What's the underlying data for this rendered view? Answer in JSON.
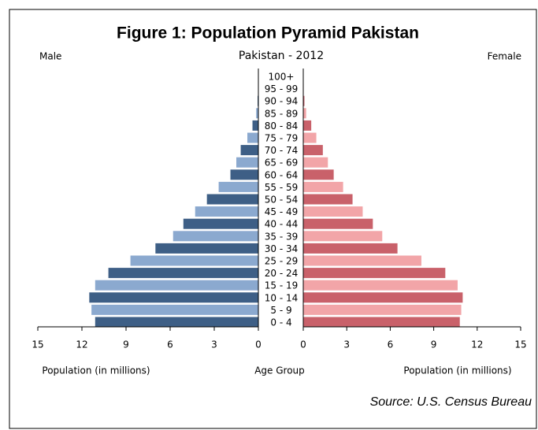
{
  "chart_data": {
    "type": "pyramid",
    "title": "Figure 1: Population Pyramid Pakistan",
    "subtitle": "Pakistan - 2012",
    "source": "Source: U.S. Census Bureau",
    "ylabel": "Age Group",
    "categories": [
      "0 - 4",
      "5 - 9",
      "10 - 14",
      "15 - 19",
      "20 - 24",
      "25 - 29",
      "30 - 34",
      "35 - 39",
      "40 - 44",
      "45 - 49",
      "50 - 54",
      "55 - 59",
      "60 - 64",
      "65 - 69",
      "70 - 74",
      "75 - 79",
      "80 - 84",
      "85 - 89",
      "90 - 94",
      "95 - 99",
      "100+"
    ],
    "xlim": [
      0,
      15
    ],
    "xticks": [
      0,
      3,
      6,
      9,
      12,
      15
    ],
    "series": [
      {
        "name": "Male",
        "side": "left",
        "xlabel": "Population (in millions)",
        "colors": [
          "#3e5f86",
          "#8ba9cf"
        ],
        "values": [
          11.1,
          11.35,
          11.5,
          11.1,
          10.2,
          8.7,
          7.0,
          5.8,
          5.1,
          4.3,
          3.5,
          2.7,
          1.9,
          1.5,
          1.2,
          0.75,
          0.4,
          0.15,
          0.05,
          0.02,
          0.01
        ]
      },
      {
        "name": "Female",
        "side": "right",
        "xlabel": "Population (in millions)",
        "colors": [
          "#c9616a",
          "#f2a5a8"
        ],
        "values": [
          10.8,
          10.9,
          11.0,
          10.65,
          9.8,
          8.15,
          6.5,
          5.45,
          4.8,
          4.1,
          3.4,
          2.75,
          2.1,
          1.7,
          1.35,
          0.9,
          0.55,
          0.2,
          0.08,
          0.03,
          0.01
        ]
      }
    ]
  }
}
